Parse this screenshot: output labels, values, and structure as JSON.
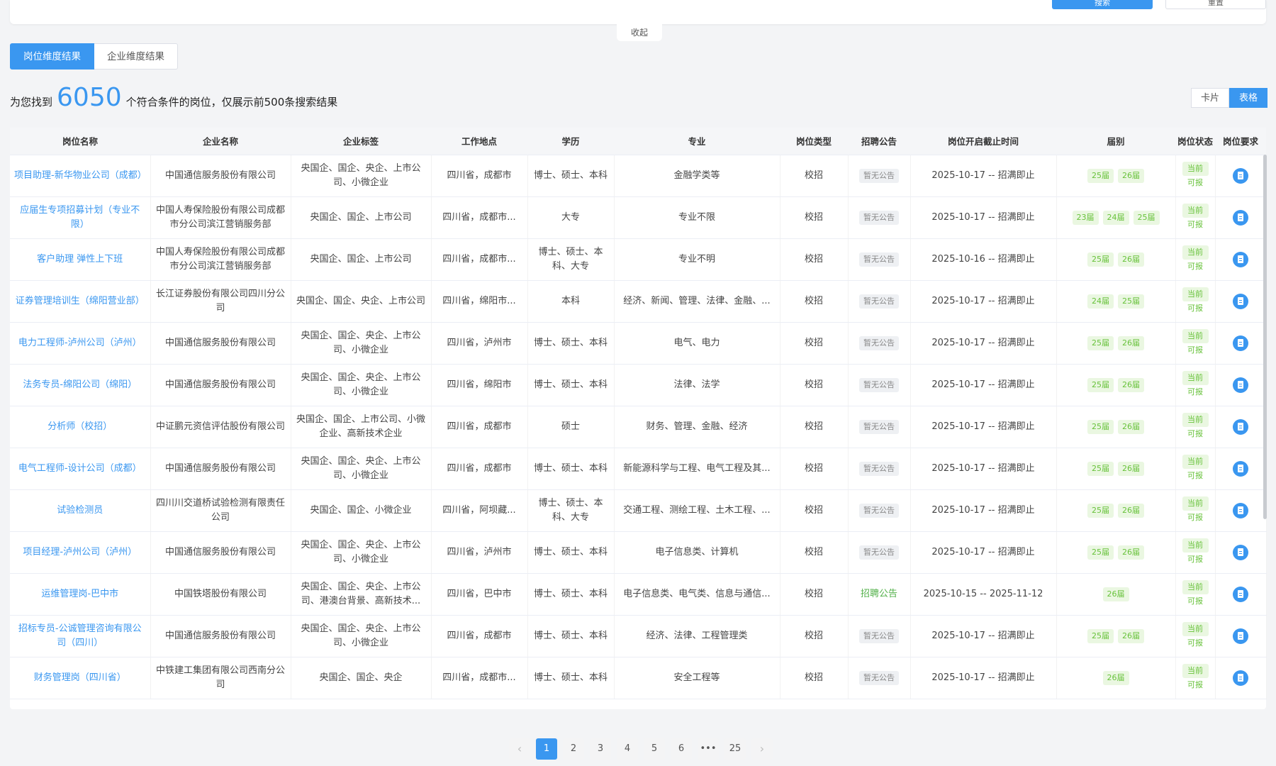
{
  "top": {
    "search_button": "搜索",
    "reset_button": "重置",
    "collapse": "收起"
  },
  "tabs": [
    {
      "label": "岗位维度结果"
    },
    {
      "label": "企业维度结果"
    }
  ],
  "summary": {
    "prefix": "为您找到",
    "count": "6050",
    "suffix": "个符合条件的岗位，仅展示前500条搜索结果"
  },
  "view_toggle": {
    "card": "卡片",
    "table": "表格",
    "selected": "表格"
  },
  "table": {
    "headers": [
      "岗位名称",
      "企业名称",
      "企业标签",
      "工作地点",
      "学历",
      "专业",
      "岗位类型",
      "招聘公告",
      "岗位开启截止时间",
      "届别",
      "岗位状态",
      "岗位要求"
    ],
    "rows": [
      {
        "name": "项目助理-新华物业公司（成都）",
        "company": "中国通信服务股份有限公司",
        "tags": "央国企、国企、央企、上市公司、小微企业",
        "location": "四川省，成都市",
        "degree": "博士、硕士、本科",
        "major": "金融学类等",
        "type": "校招",
        "notice": "暂无公告",
        "time": "2025-10-17 -- 招满即止",
        "classes": [
          "25届",
          "26届"
        ],
        "status": "当前可报"
      },
      {
        "name": "应届生专项招募计划（专业不限）",
        "company": "中国人寿保险股份有限公司成都市分公司滨江营销服务部",
        "tags": "央国企、国企、上市公司",
        "location": "四川省，成都市...",
        "degree": "大专",
        "major": "专业不限",
        "type": "校招",
        "notice": "暂无公告",
        "time": "2025-10-17 -- 招满即止",
        "classes": [
          "23届",
          "24届",
          "25届"
        ],
        "status": "当前可报"
      },
      {
        "name": "客户助理 弹性上下班",
        "company": "中国人寿保险股份有限公司成都市分公司滨江营销服务部",
        "tags": "央国企、国企、上市公司",
        "location": "四川省，成都市...",
        "degree": "博士、硕士、本科、大专",
        "major": "专业不明",
        "type": "校招",
        "notice": "暂无公告",
        "time": "2025-10-16 -- 招满即止",
        "classes": [
          "25届",
          "26届"
        ],
        "status": "当前可报"
      },
      {
        "name": "证券管理培训生（绵阳营业部）",
        "company": "长江证券股份有限公司四川分公司",
        "tags": "央国企、国企、央企、上市公司",
        "location": "四川省，绵阳市...",
        "degree": "本科",
        "major": "经济、新闻、管理、法律、金融、...",
        "type": "校招",
        "notice": "暂无公告",
        "time": "2025-10-17 -- 招满即止",
        "classes": [
          "24届",
          "25届"
        ],
        "status": "当前可报"
      },
      {
        "name": "电力工程师-泸州公司（泸州）",
        "company": "中国通信服务股份有限公司",
        "tags": "央国企、国企、央企、上市公司、小微企业",
        "location": "四川省，泸州市",
        "degree": "博士、硕士、本科",
        "major": "电气、电力",
        "type": "校招",
        "notice": "暂无公告",
        "time": "2025-10-17 -- 招满即止",
        "classes": [
          "25届",
          "26届"
        ],
        "status": "当前可报"
      },
      {
        "name": "法务专员-绵阳公司（绵阳）",
        "company": "中国通信服务股份有限公司",
        "tags": "央国企、国企、央企、上市公司、小微企业",
        "location": "四川省，绵阳市",
        "degree": "博士、硕士、本科",
        "major": "法律、法学",
        "type": "校招",
        "notice": "暂无公告",
        "time": "2025-10-17 -- 招满即止",
        "classes": [
          "25届",
          "26届"
        ],
        "status": "当前可报"
      },
      {
        "name": "分析师（校招）",
        "company": "中证鹏元资信评估股份有限公司",
        "tags": "央国企、国企、上市公司、小微企业、高新技术企业",
        "location": "四川省，成都市",
        "degree": "硕士",
        "major": "财务、管理、金融、经济",
        "type": "校招",
        "notice": "暂无公告",
        "time": "2025-10-17 -- 招满即止",
        "classes": [
          "25届",
          "26届"
        ],
        "status": "当前可报"
      },
      {
        "name": "电气工程师-设计公司（成都）",
        "company": "中国通信服务股份有限公司",
        "tags": "央国企、国企、央企、上市公司、小微企业",
        "location": "四川省，成都市",
        "degree": "博士、硕士、本科",
        "major": "新能源科学与工程、电气工程及其...",
        "type": "校招",
        "notice": "暂无公告",
        "time": "2025-10-17 -- 招满即止",
        "classes": [
          "25届",
          "26届"
        ],
        "status": "当前可报"
      },
      {
        "name": "试验检测员",
        "company": "四川川交道桥试验检测有限责任公司",
        "tags": "央国企、国企、小微企业",
        "location": "四川省，阿坝藏...",
        "degree": "博士、硕士、本科、大专",
        "major": "交通工程、测绘工程、土木工程、...",
        "type": "校招",
        "notice": "暂无公告",
        "time": "2025-10-17 -- 招满即止",
        "classes": [
          "25届",
          "26届"
        ],
        "status": "当前可报"
      },
      {
        "name": "项目经理-泸州公司（泸州）",
        "company": "中国通信服务股份有限公司",
        "tags": "央国企、国企、央企、上市公司、小微企业",
        "location": "四川省，泸州市",
        "degree": "博士、硕士、本科",
        "major": "电子信息类、计算机",
        "type": "校招",
        "notice": "暂无公告",
        "time": "2025-10-17 -- 招满即止",
        "classes": [
          "25届",
          "26届"
        ],
        "status": "当前可报"
      },
      {
        "name": "运维管理岗-巴中市",
        "company": "中国铁塔股份有限公司",
        "tags": "央国企、国企、央企、上市公司、港澳台背景、高新技术...",
        "location": "四川省，巴中市",
        "degree": "博士、硕士、本科",
        "major": "电子信息类、电气类、信息与通信...",
        "type": "校招",
        "notice": "招聘公告",
        "time": "2025-10-15 -- 2025-11-12",
        "classes": [
          "26届"
        ],
        "status": "当前可报"
      },
      {
        "name": "招标专员-公诚管理咨询有限公司（四川）",
        "company": "中国通信服务股份有限公司",
        "tags": "央国企、国企、央企、上市公司、小微企业",
        "location": "四川省，成都市",
        "degree": "博士、硕士、本科",
        "major": "经济、法律、工程管理类",
        "type": "校招",
        "notice": "暂无公告",
        "time": "2025-10-17 -- 招满即止",
        "classes": [
          "25届",
          "26届"
        ],
        "status": "当前可报"
      },
      {
        "name": "财务管理岗（四川省）",
        "company": "中铁建工集团有限公司西南分公司",
        "tags": "央国企、国企、央企",
        "location": "四川省，成都市...",
        "degree": "博士、硕士、本科",
        "major": "安全工程等",
        "type": "校招",
        "notice": "暂无公告",
        "time": "2025-10-17 -- 招满即止",
        "classes": [
          "26届"
        ],
        "status": "当前可报"
      }
    ]
  },
  "pagination": {
    "prev": "‹",
    "pages": [
      "1",
      "2",
      "3",
      "4",
      "5",
      "6",
      "•••",
      "25"
    ],
    "current": "1",
    "next": "›"
  },
  "colors": {
    "accent": "#3a97f0",
    "green": "#67c23a"
  },
  "icons": {
    "requirement": "document-icon"
  }
}
